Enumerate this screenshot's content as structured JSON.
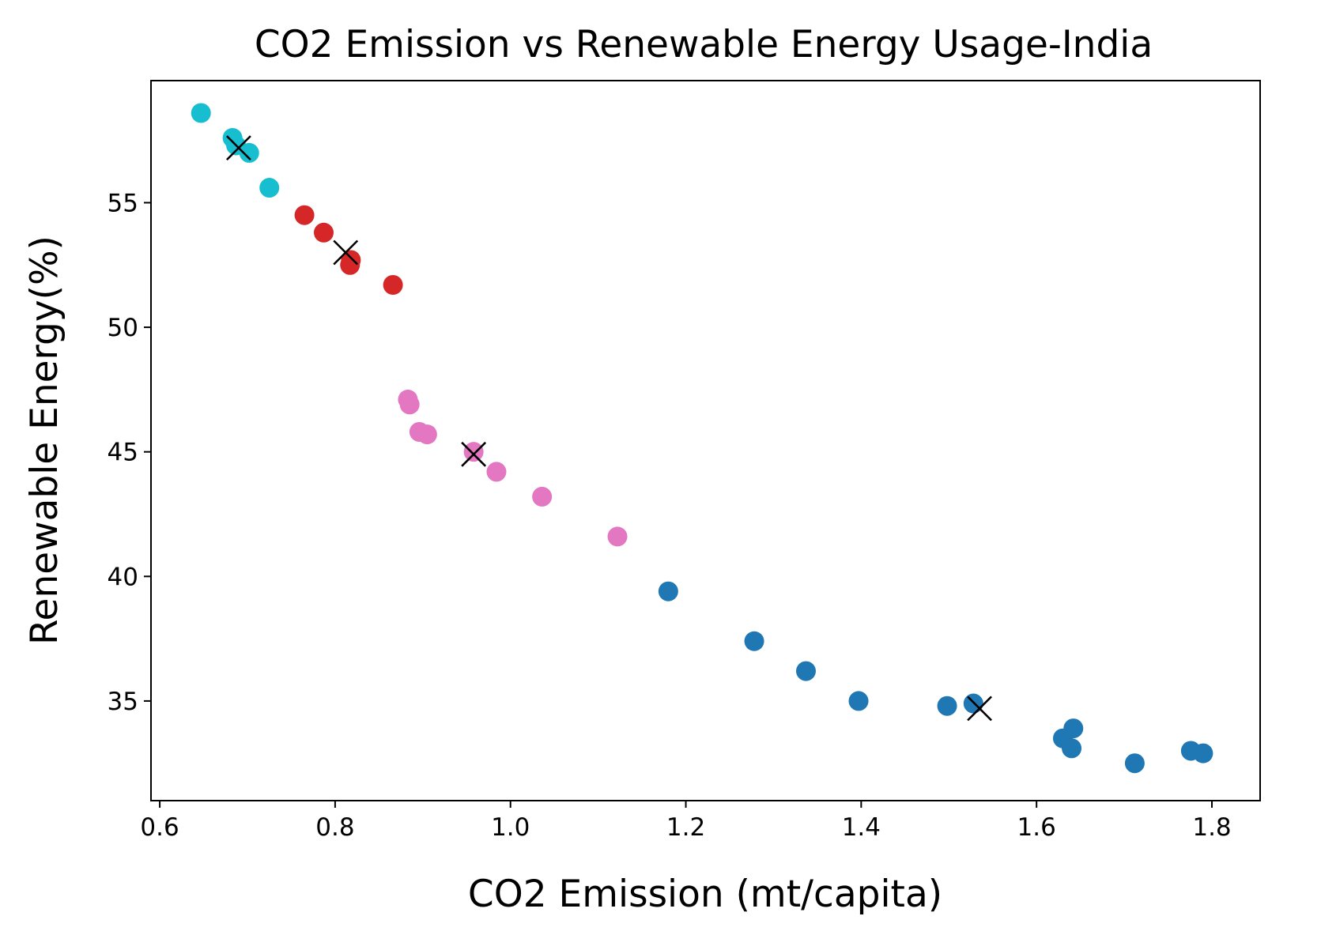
{
  "chart_data": {
    "type": "scatter",
    "title": "CO2 Emission vs Renewable Energy Usage-India",
    "xlabel": "CO2 Emission (mt/capita)",
    "ylabel": "Renewable Energy(%)",
    "xlim": [
      0.59,
      1.855
    ],
    "ylim": [
      31.0,
      59.9
    ],
    "xticks": [
      0.6,
      0.8,
      1.0,
      1.2,
      1.4,
      1.6,
      1.8
    ],
    "xtick_labels": [
      "0.6",
      "0.8",
      "1.0",
      "1.2",
      "1.4",
      "1.6",
      "1.8"
    ],
    "yticks": [
      35,
      40,
      45,
      50,
      55
    ],
    "ytick_labels": [
      "35",
      "40",
      "45",
      "50",
      "55"
    ],
    "grid": false,
    "legend": "none",
    "series": [
      {
        "color": "#17becf",
        "points": [
          {
            "x": 0.647,
            "y": 58.6
          },
          {
            "x": 0.683,
            "y": 57.6
          },
          {
            "x": 0.687,
            "y": 57.3
          },
          {
            "x": 0.702,
            "y": 57.0
          },
          {
            "x": 0.725,
            "y": 55.6
          }
        ]
      },
      {
        "color": "#d62728",
        "points": [
          {
            "x": 0.765,
            "y": 54.5
          },
          {
            "x": 0.787,
            "y": 53.8
          },
          {
            "x": 0.818,
            "y": 52.7
          },
          {
            "x": 0.817,
            "y": 52.5
          },
          {
            "x": 0.866,
            "y": 51.7
          }
        ]
      },
      {
        "color": "#e377c2",
        "points": [
          {
            "x": 0.883,
            "y": 47.1
          },
          {
            "x": 0.885,
            "y": 46.9
          },
          {
            "x": 0.896,
            "y": 45.8
          },
          {
            "x": 0.905,
            "y": 45.7
          },
          {
            "x": 0.958,
            "y": 45.0
          },
          {
            "x": 0.984,
            "y": 44.2
          },
          {
            "x": 1.036,
            "y": 43.2
          },
          {
            "x": 1.122,
            "y": 41.6
          }
        ]
      },
      {
        "color": "#1f77b4",
        "points": [
          {
            "x": 1.18,
            "y": 39.4
          },
          {
            "x": 1.278,
            "y": 37.4
          },
          {
            "x": 1.337,
            "y": 36.2
          },
          {
            "x": 1.397,
            "y": 35.0
          },
          {
            "x": 1.498,
            "y": 34.8
          },
          {
            "x": 1.528,
            "y": 34.9
          },
          {
            "x": 1.63,
            "y": 33.5
          },
          {
            "x": 1.642,
            "y": 33.9
          },
          {
            "x": 1.64,
            "y": 33.1
          },
          {
            "x": 1.712,
            "y": 32.5
          },
          {
            "x": 1.776,
            "y": 33.0
          },
          {
            "x": 1.79,
            "y": 32.9
          }
        ]
      }
    ],
    "centroids": {
      "marker": "x",
      "color": "#000000",
      "points": [
        {
          "x": 0.69,
          "y": 57.2
        },
        {
          "x": 0.812,
          "y": 53.0
        },
        {
          "x": 0.958,
          "y": 44.9
        },
        {
          "x": 1.535,
          "y": 34.7
        }
      ]
    }
  }
}
